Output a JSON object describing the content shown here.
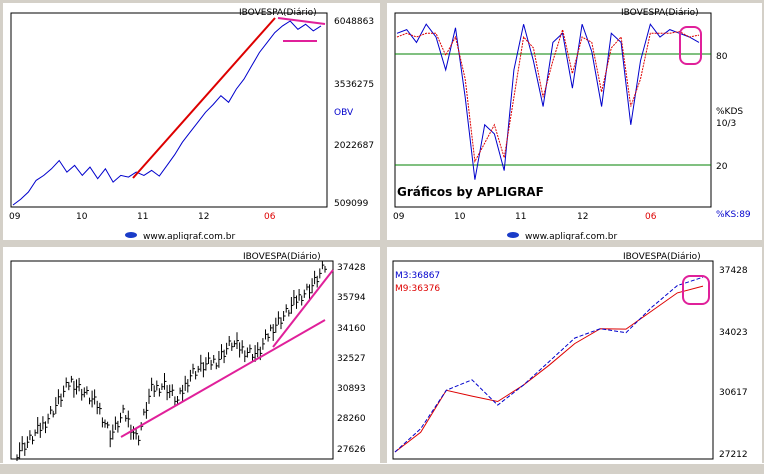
{
  "panels": [
    {
      "id": "obv",
      "title": "IBOVESPA",
      "title_suffix": "(Diário)",
      "watermark": "www.apligraf.com.br",
      "right_labels": [
        "6048863",
        "3536275",
        "OBV",
        "2022687",
        "509099"
      ],
      "x_ticks": [
        "09",
        "10",
        "11",
        "12",
        "06"
      ]
    },
    {
      "id": "stoch",
      "title": "IBOVESPA",
      "title_suffix": "(Diário)",
      "watermark": "www.apligraf.com.br",
      "brand": "Gráficos by APLIGRAF",
      "right_labels": [
        "80",
        "%KDS",
        "10/3",
        "20",
        "%KS:89"
      ],
      "x_ticks": [
        "09",
        "10",
        "11",
        "12",
        "06"
      ]
    },
    {
      "id": "price",
      "title": "IBOVESPA",
      "title_suffix": "(Diário)",
      "right_labels": [
        "37428",
        "35794",
        "34160",
        "32527",
        "30893",
        "28260",
        "27626"
      ],
      "x_ticks": []
    },
    {
      "id": "ma",
      "title": "IBOVESPA",
      "title_suffix": "(Diário)",
      "legend": [
        "M3:36867",
        "M9:36376"
      ],
      "right_labels": [
        "37428",
        "34023",
        "30617",
        "27212"
      ],
      "x_ticks": []
    }
  ],
  "colors": {
    "blue": "#0000cc",
    "red": "#dd0000",
    "magenta": "#e0209a",
    "green": "#008000"
  },
  "chart_data": [
    {
      "type": "line",
      "title": "IBOVESPA (Diário)",
      "series": [
        {
          "name": "OBV",
          "values": [
            509099,
            680000,
            900000,
            1250000,
            1400000,
            1600000,
            1850000,
            1500000,
            1700000,
            1400000,
            1650000,
            1300000,
            1600000,
            1200000,
            1400000,
            1350000,
            1500000,
            1400000,
            1550000,
            1380000,
            1700000,
            2022687,
            2400000,
            2700000,
            3000000,
            3300000,
            3536275,
            3800000,
            3600000,
            4000000,
            4300000,
            4700000,
            5100000,
            5400000,
            5700000,
            5900000,
            6048863,
            5800000,
            5950000,
            5750000,
            5900000
          ]
        }
      ],
      "ylim": [
        509099,
        6048863
      ],
      "x_ticks": [
        "09",
        "10",
        "11",
        "12",
        "06"
      ]
    },
    {
      "type": "line",
      "title": "IBOVESPA (Diário)",
      "series": [
        {
          "name": "%KDS",
          "values": [
            90,
            92,
            85,
            95,
            88,
            70,
            93,
            55,
            10,
            40,
            35,
            15,
            70,
            95,
            75,
            50,
            85,
            90,
            60,
            95,
            80,
            50,
            90,
            85,
            40,
            75,
            95,
            88,
            92,
            90,
            88,
            85
          ]
        },
        {
          "name": "%KS",
          "values": [
            88,
            90,
            88,
            90,
            90,
            78,
            88,
            65,
            20,
            30,
            40,
            22,
            55,
            88,
            82,
            55,
            75,
            92,
            68,
            88,
            85,
            58,
            82,
            88,
            50,
            65,
            90,
            90,
            90,
            91,
            88,
            89
          ]
        }
      ],
      "ylim": [
        0,
        100
      ],
      "x_ticks": [
        "09",
        "10",
        "11",
        "12",
        "06"
      ]
    },
    {
      "type": "bar",
      "title": "IBOVESPA (Diário)",
      "series": [
        {
          "name": "IBOVESPA",
          "values": [
            27626,
            28300,
            29100,
            30200,
            31400,
            30800,
            30100,
            28500,
            29700,
            28260,
            30893,
            31200,
            30300,
            31800,
            32200,
            32527,
            33400,
            33000,
            32800,
            34160,
            34900,
            35794,
            36400,
            37428
          ]
        }
      ],
      "ylim": [
        27626,
        37428
      ]
    },
    {
      "type": "line",
      "title": "IBOVESPA (Diário)",
      "series": [
        {
          "name": "M3",
          "values": [
            27212,
            28500,
            30617,
            31200,
            29800,
            30900,
            32200,
            33500,
            34023,
            33800,
            35200,
            36400,
            36867
          ]
        },
        {
          "name": "M9",
          "values": [
            27212,
            28300,
            30617,
            30300,
            30000,
            30900,
            32000,
            33200,
            34023,
            34000,
            35000,
            36000,
            36376
          ]
        }
      ],
      "ylim": [
        27212,
        37428
      ]
    }
  ]
}
